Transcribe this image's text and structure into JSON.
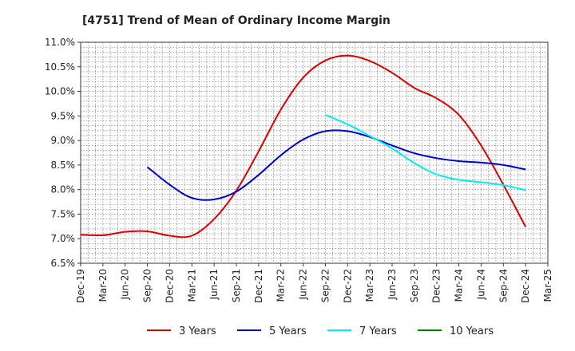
{
  "chart_data": {
    "type": "line",
    "title": "[4751]  Trend of Mean of Ordinary Income Margin",
    "xlabel": "",
    "ylabel": "",
    "x_ticks": [
      "Dec-19",
      "Mar-20",
      "Jun-20",
      "Sep-20",
      "Dec-20",
      "Mar-21",
      "Jun-21",
      "Sep-21",
      "Dec-21",
      "Mar-22",
      "Jun-22",
      "Sep-22",
      "Dec-22",
      "Mar-23",
      "Jun-23",
      "Sep-23",
      "Dec-23",
      "Mar-24",
      "Jun-24",
      "Sep-24",
      "Dec-24",
      "Mar-25"
    ],
    "y_ticks": [
      "6.5%",
      "7.0%",
      "7.5%",
      "8.0%",
      "8.5%",
      "9.0%",
      "9.5%",
      "10.0%",
      "10.5%",
      "11.0%"
    ],
    "ylim": [
      6.5,
      11.0
    ],
    "grid": true,
    "legend_position": "bottom",
    "series": [
      {
        "name": "3 Years",
        "color": "#dd0000",
        "x": [
          "Dec-19",
          "Mar-20",
          "Jun-20",
          "Sep-20",
          "Dec-20",
          "Mar-21",
          "Jun-21",
          "Sep-21",
          "Dec-21",
          "Mar-22",
          "Jun-22",
          "Sep-22",
          "Dec-22",
          "Mar-23",
          "Jun-23",
          "Sep-23",
          "Dec-23",
          "Mar-24",
          "Jun-24",
          "Sep-24",
          "Dec-24"
        ],
        "values": [
          7.08,
          7.07,
          7.14,
          7.15,
          7.06,
          7.06,
          7.4,
          7.98,
          8.78,
          9.63,
          10.28,
          10.63,
          10.73,
          10.62,
          10.38,
          10.07,
          9.86,
          9.52,
          8.9,
          8.1,
          7.24
        ]
      },
      {
        "name": "5 Years",
        "color": "#0000cc",
        "x": [
          "Sep-20",
          "Dec-20",
          "Mar-21",
          "Jun-21",
          "Sep-21",
          "Dec-21",
          "Mar-22",
          "Jun-22",
          "Sep-22",
          "Dec-22",
          "Mar-23",
          "Jun-23",
          "Sep-23",
          "Dec-23",
          "Mar-24",
          "Jun-24",
          "Sep-24",
          "Dec-24"
        ],
        "values": [
          8.46,
          8.1,
          7.83,
          7.8,
          7.96,
          8.3,
          8.7,
          9.02,
          9.19,
          9.19,
          9.07,
          8.9,
          8.74,
          8.64,
          8.58,
          8.55,
          8.5,
          8.41
        ]
      },
      {
        "name": "7 Years",
        "color": "#00eeee",
        "x": [
          "Sep-22",
          "Dec-22",
          "Mar-23",
          "Jun-23",
          "Sep-23",
          "Dec-23",
          "Mar-24",
          "Jun-24",
          "Sep-24",
          "Dec-24"
        ],
        "values": [
          9.52,
          9.33,
          9.09,
          8.84,
          8.54,
          8.31,
          8.2,
          8.15,
          8.09,
          7.99
        ]
      },
      {
        "name": "10 Years",
        "color": "#008000",
        "x": [],
        "values": []
      }
    ]
  }
}
